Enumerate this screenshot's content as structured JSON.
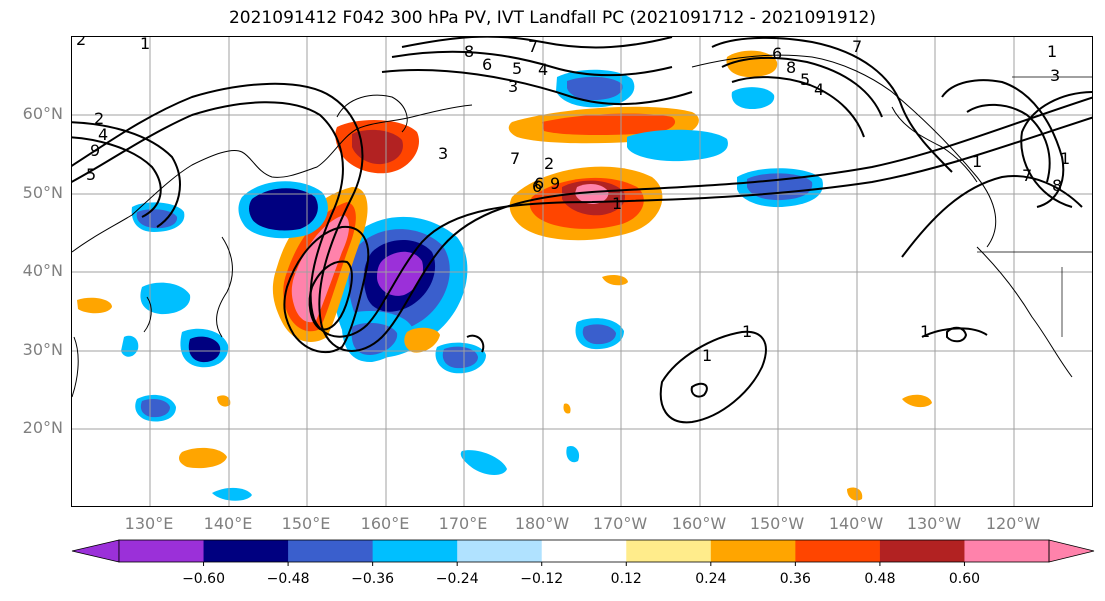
{
  "title": "2021091412 F042 300 hPa PV, IVT Landfall PC (2021091712 - 2021091912)",
  "lat_labels": [
    "60°N",
    "50°N",
    "40°N",
    "30°N",
    "20°N"
  ],
  "lon_labels": [
    "130°E",
    "140°E",
    "150°E",
    "160°E",
    "170°E",
    "180°W",
    "170°W",
    "160°W",
    "150°W",
    "140°W",
    "130°W",
    "120°W"
  ],
  "colorbar": {
    "colors": [
      "#9b30d9",
      "#000080",
      "#3a5fcd",
      "#00bfff",
      "#b0e2ff",
      "#ffffff",
      "#ffec8b",
      "#ffa500",
      "#ff4500",
      "#b22222",
      "#ff82ab"
    ],
    "under_color": "#9b30d9",
    "over_color": "#ff82ab",
    "ticks": [
      "−0.60",
      "−0.48",
      "−0.36",
      "−0.24",
      "−0.12",
      "0.12",
      "0.24",
      "0.36",
      "0.48",
      "0.60"
    ]
  },
  "contour_labels": [
    "2",
    "1",
    "8",
    "7",
    "6",
    "5",
    "4",
    "3",
    "6",
    "8",
    "7",
    "5",
    "4",
    "3",
    "1",
    "2",
    "4",
    "9",
    "5",
    "3",
    "7",
    "2",
    "1",
    "9",
    "6",
    "1",
    "1",
    "1",
    "1",
    "1",
    "7",
    "8",
    "6"
  ],
  "colors": {
    "land": "#000000",
    "grid": "#a0a0a0",
    "contour": "#000000"
  }
}
